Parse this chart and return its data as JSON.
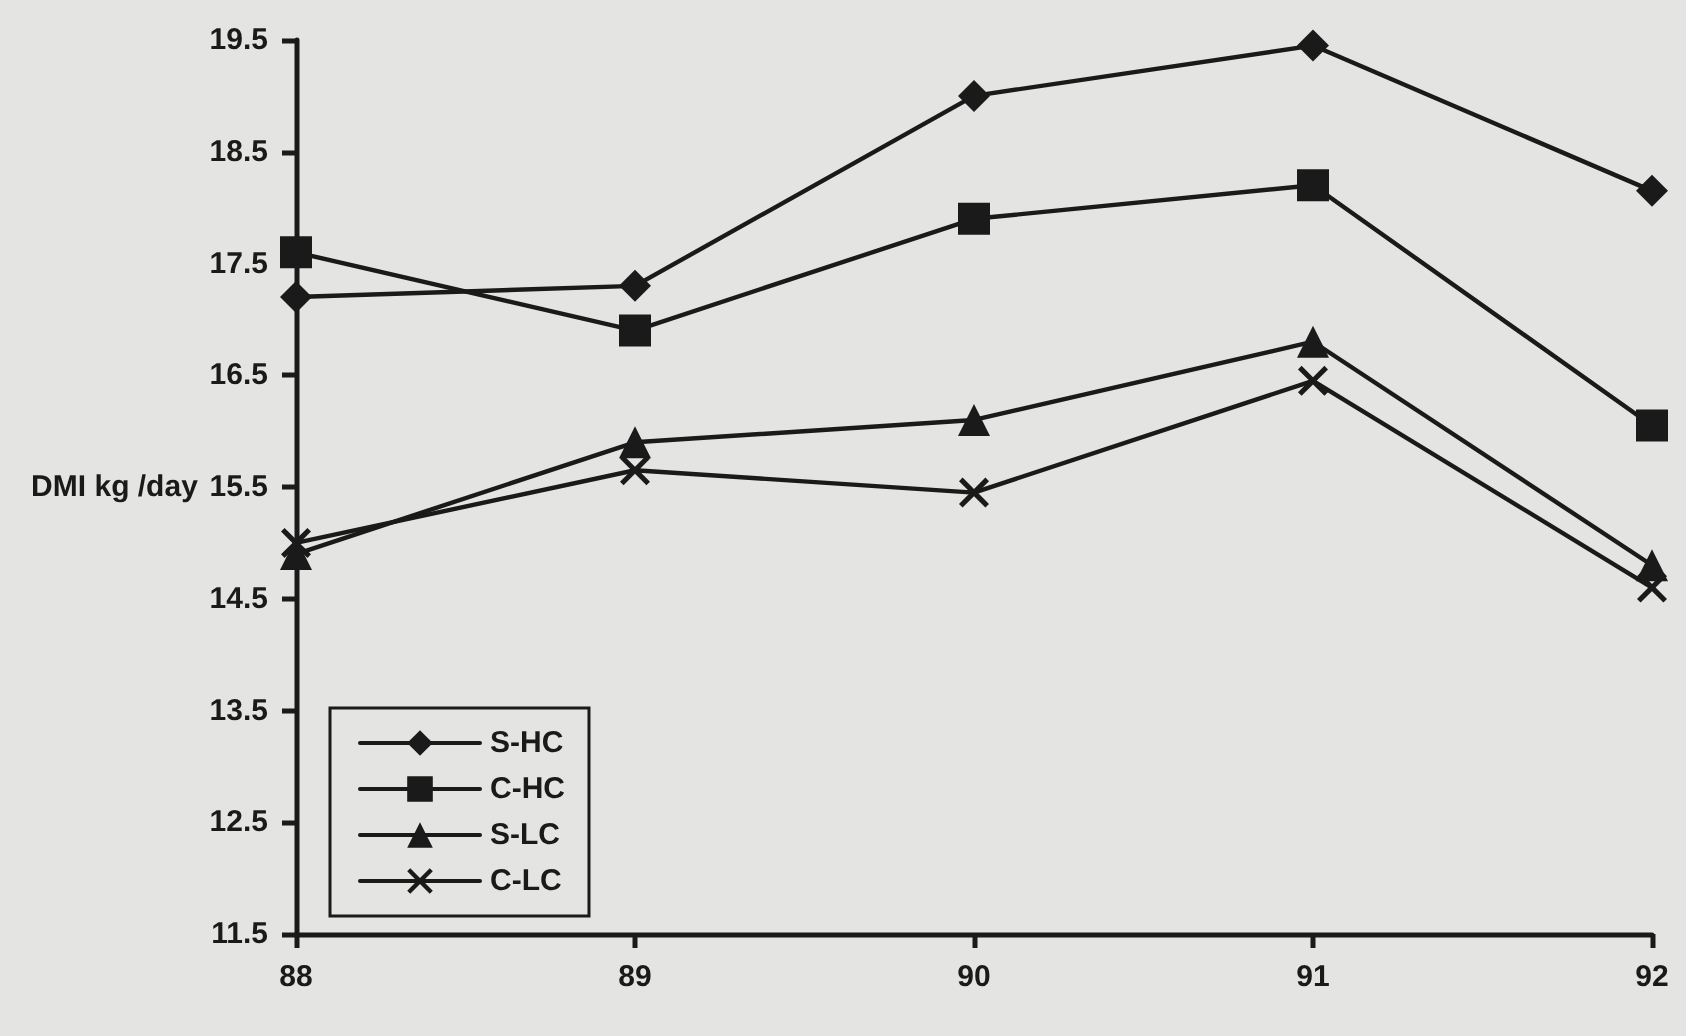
{
  "chart_data": {
    "type": "line",
    "ylabel": "DMI kg /day",
    "x": [
      88,
      89,
      90,
      91,
      92
    ],
    "xlim": [
      88,
      92
    ],
    "xticks": [
      88,
      89,
      90,
      91,
      92
    ],
    "ylim": [
      11.5,
      19.5
    ],
    "yticks": [
      11.5,
      12.5,
      13.5,
      14.5,
      15.5,
      16.5,
      17.5,
      18.5,
      19.5
    ],
    "grid": false,
    "legend": "bottom left",
    "line_style": "solid",
    "series": [
      {
        "name": "S-HC",
        "color": "#1a1a1a",
        "marker": "diamond",
        "values": [
          17.2,
          17.3,
          19.0,
          19.45,
          18.15
        ]
      },
      {
        "name": "C-HC",
        "color": "#1a1a1a",
        "marker": "square",
        "values": [
          17.6,
          16.9,
          17.9,
          18.2,
          16.05
        ]
      },
      {
        "name": "S-LC",
        "color": "#1a1a1a",
        "marker": "triangle",
        "values": [
          14.9,
          15.9,
          16.1,
          16.8,
          14.8
        ]
      },
      {
        "name": "C-LC",
        "color": "#1a1a1a",
        "marker": "cross",
        "values": [
          15.0,
          15.65,
          15.45,
          16.45,
          14.6
        ]
      }
    ]
  }
}
